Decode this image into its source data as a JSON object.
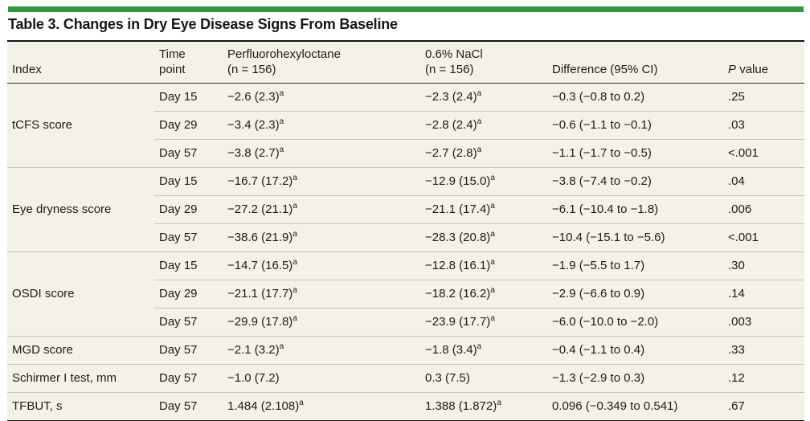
{
  "colors": {
    "accent_green": "#2d9a3f",
    "table_background": "#f4f1e8",
    "hairline_gray": "#c9c6bc",
    "rule_black": "#17160f"
  },
  "title": "Table 3. Changes in Dry Eye Disease Signs From Baseline",
  "table": {
    "headers": {
      "index": "Index",
      "time_point": "Time\npoint",
      "drug": "Perfluorohexyloctane\n(n = 156)",
      "control": "0.6% NaCl\n(n = 156)",
      "difference": "Difference (95% CI)",
      "p_italic": "P",
      "p_rest": "value"
    },
    "groups": [
      {
        "index": "tCFS score",
        "rows": [
          {
            "time": "Day 15",
            "drug": "−2.6 (2.3)",
            "drug_sup": "a",
            "control": "−2.3 (2.4)",
            "control_sup": "a",
            "difference": "−0.3 (−0.8 to 0.2)",
            "p": ".25"
          },
          {
            "time": "Day 29",
            "drug": "−3.4 (2.3)",
            "drug_sup": "a",
            "control": "−2.8 (2.4)",
            "control_sup": "a",
            "difference": "−0.6 (−1.1 to −0.1)",
            "p": ".03"
          },
          {
            "time": "Day 57",
            "drug": "−3.8 (2.7)",
            "drug_sup": "a",
            "control": "−2.7 (2.8)",
            "control_sup": "a",
            "difference": "−1.1 (−1.7 to −0.5)",
            "p": "<.001"
          }
        ]
      },
      {
        "index": "Eye dryness score",
        "rows": [
          {
            "time": "Day 15",
            "drug": "−16.7 (17.2)",
            "drug_sup": "a",
            "control": "−12.9 (15.0)",
            "control_sup": "a",
            "difference": "−3.8 (−7.4 to −0.2)",
            "p": ".04"
          },
          {
            "time": "Day 29",
            "drug": "−27.2 (21.1)",
            "drug_sup": "a",
            "control": "−21.1 (17.4)",
            "control_sup": "a",
            "difference": "−6.1 (−10.4 to −1.8)",
            "p": ".006"
          },
          {
            "time": "Day 57",
            "drug": "−38.6 (21.9)",
            "drug_sup": "a",
            "control": "−28.3 (20.8)",
            "control_sup": "a",
            "difference": "−10.4 (−15.1 to −5.6)",
            "p": "<.001"
          }
        ]
      },
      {
        "index": "OSDI score",
        "rows": [
          {
            "time": "Day 15",
            "drug": "−14.7 (16.5)",
            "drug_sup": "a",
            "control": "−12.8 (16.1)",
            "control_sup": "a",
            "difference": "−1.9 (−5.5 to 1.7)",
            "p": ".30"
          },
          {
            "time": "Day 29",
            "drug": "−21.1 (17.7)",
            "drug_sup": "a",
            "control": "−18.2 (16.2)",
            "control_sup": "a",
            "difference": "−2.9 (−6.6 to 0.9)",
            "p": ".14"
          },
          {
            "time": "Day 57",
            "drug": "−29.9 (17.8)",
            "drug_sup": "a",
            "control": "−23.9 (17.7)",
            "control_sup": "a",
            "difference": "−6.0 (−10.0 to −2.0)",
            "p": ".003"
          }
        ]
      },
      {
        "index": "MGD score",
        "rows": [
          {
            "time": "Day 57",
            "drug": "−2.1 (3.2)",
            "drug_sup": "a",
            "control": "−1.8 (3.4)",
            "control_sup": "a",
            "difference": "−0.4 (−1.1 to 0.4)",
            "p": ".33"
          }
        ]
      },
      {
        "index": "Schirmer I test, mm",
        "rows": [
          {
            "time": "Day 57",
            "drug": "−1.0 (7.2)",
            "drug_sup": "",
            "control": "0.3 (7.5)",
            "control_sup": "",
            "difference": "−1.3 (−2.9 to 0.3)",
            "p": ".12"
          }
        ]
      },
      {
        "index": "TFBUT, s",
        "rows": [
          {
            "time": "Day 57",
            "drug": "1.484 (2.108)",
            "drug_sup": "a",
            "control": "1.388 (1.872)",
            "control_sup": "a",
            "difference": "0.096 (−0.349 to 0.541)",
            "p": ".67"
          }
        ]
      }
    ]
  }
}
